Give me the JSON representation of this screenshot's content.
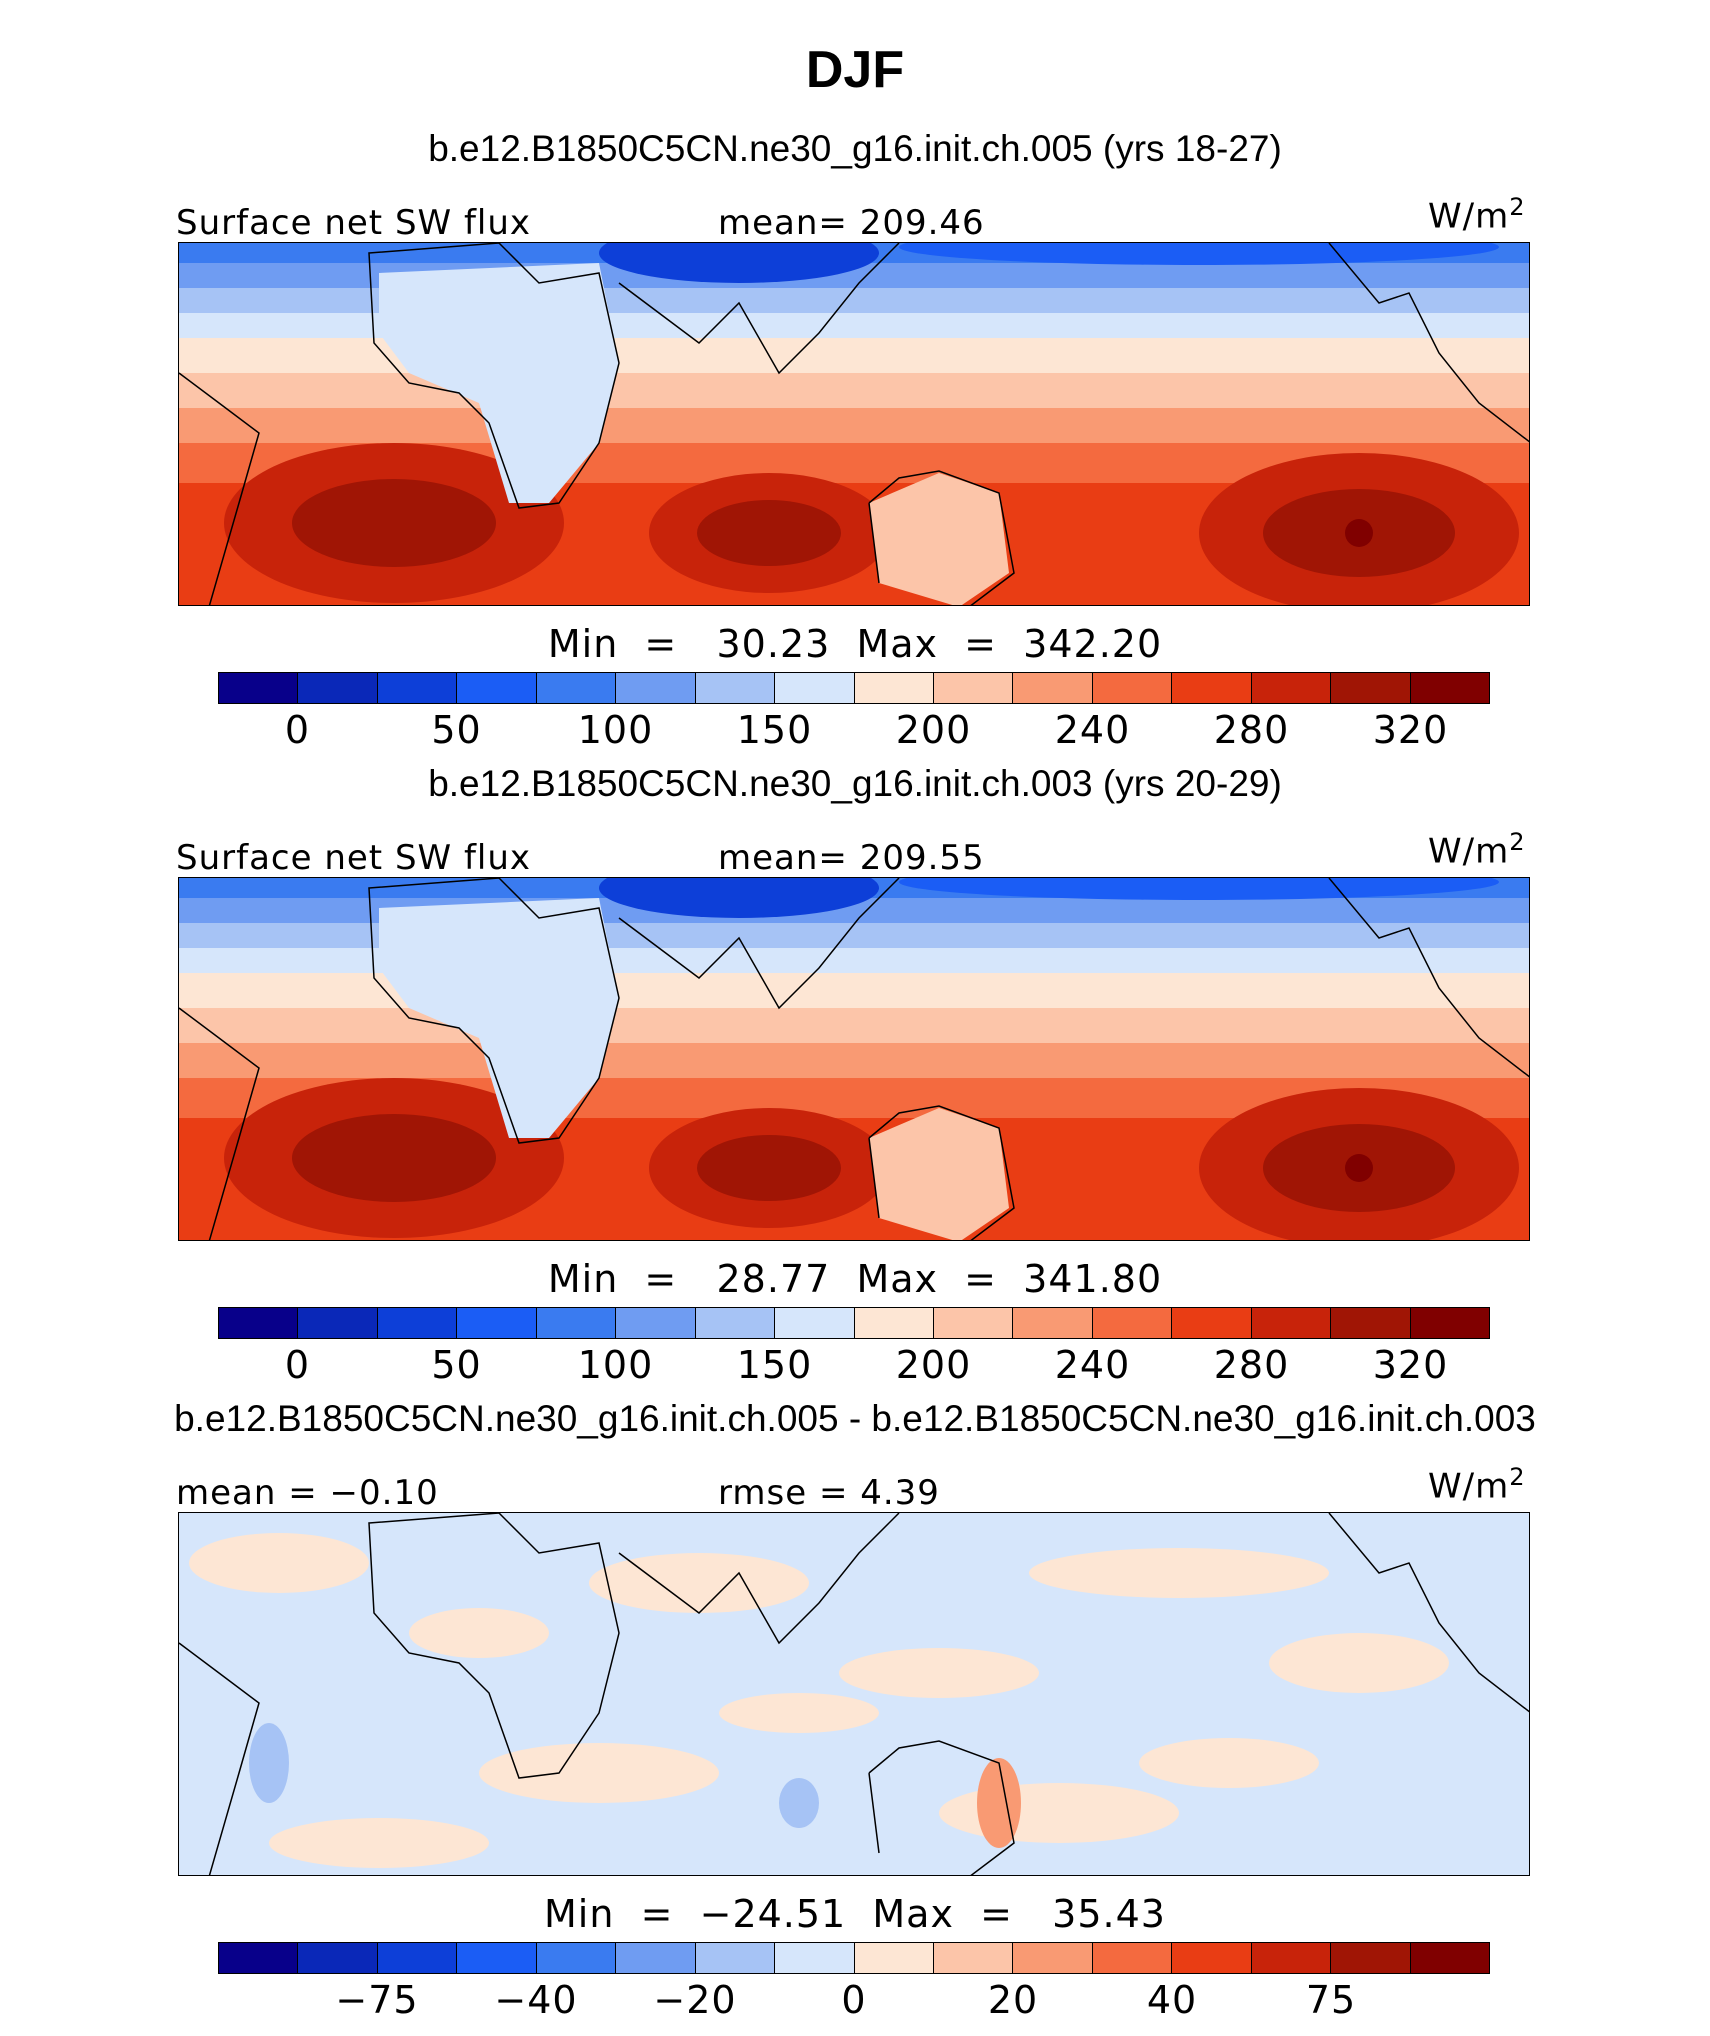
{
  "title": "DJF",
  "palette": {
    "blue_red_14": [
      "#08008a",
      "#0a28b8",
      "#0d3fd8",
      "#1b5df5",
      "#3a7bf0",
      "#6f9cf2",
      "#a6c3f5",
      "#d6e6fb",
      "#fde6d4",
      "#fcc5a9",
      "#f99a73",
      "#f46a3f",
      "#e93d14",
      "#c8230a",
      "#a01505",
      "#800000"
    ]
  },
  "panels": [
    {
      "case_title": "b.e12.B1850C5CN.ne30_g16.init.ch.005 (yrs 18-27)",
      "left_label": "Surface net SW flux",
      "center_label": "mean= 209.46",
      "units": "W/m",
      "units_sup": "2",
      "minmax": "Min  =   30.23  Max  =  342.20",
      "tick_labels": [
        "0",
        "50",
        "100",
        "150",
        "200",
        "240",
        "280",
        "320"
      ]
    },
    {
      "case_title": "b.e12.B1850C5CN.ne30_g16.init.ch.003 (yrs 20-29)",
      "left_label": "Surface net SW flux",
      "center_label": "mean= 209.55",
      "units": "W/m",
      "units_sup": "2",
      "minmax": "Min  =   28.77  Max  =  341.80",
      "tick_labels": [
        "0",
        "50",
        "100",
        "150",
        "200",
        "240",
        "280",
        "320"
      ]
    },
    {
      "case_title": "b.e12.B1850C5CN.ne30_g16.init.ch.005 - b.e12.B1850C5CN.ne30_g16.init.ch.003",
      "left_label": "mean =   −0.10",
      "center_label": "rmse =    4.39",
      "units": "W/m",
      "units_sup": "2",
      "minmax": "Min  =  −24.51  Max  =   35.43",
      "tick_labels": [
        "−75",
        "−40",
        "−20",
        "0",
        "20",
        "40",
        "75"
      ]
    }
  ],
  "chart_data": [
    {
      "type": "heatmap",
      "title": "b.e12.B1850C5CN.ne30_g16.init.ch.005 (yrs 18-27)",
      "variable": "Surface net SW flux",
      "units": "W/m2",
      "season": "DJF",
      "mean": 209.46,
      "min": 30.23,
      "max": 342.2,
      "colorbar_levels": [
        0,
        25,
        50,
        75,
        100,
        125,
        150,
        175,
        200,
        220,
        240,
        260,
        280,
        300,
        320
      ],
      "colorbar_tick_labels": [
        "0",
        "50",
        "100",
        "150",
        "200",
        "240",
        "280",
        "320"
      ]
    },
    {
      "type": "heatmap",
      "title": "b.e12.B1850C5CN.ne30_g16.init.ch.003 (yrs 20-29)",
      "variable": "Surface net SW flux",
      "units": "W/m2",
      "season": "DJF",
      "mean": 209.55,
      "min": 28.77,
      "max": 341.8,
      "colorbar_levels": [
        0,
        25,
        50,
        75,
        100,
        125,
        150,
        175,
        200,
        220,
        240,
        260,
        280,
        300,
        320
      ],
      "colorbar_tick_labels": [
        "0",
        "50",
        "100",
        "150",
        "200",
        "240",
        "280",
        "320"
      ]
    },
    {
      "type": "heatmap",
      "title": "b.e12.B1850C5CN.ne30_g16.init.ch.005 - b.e12.B1850C5CN.ne30_g16.init.ch.003",
      "variable": "Surface net SW flux difference",
      "units": "W/m2",
      "season": "DJF",
      "mean": -0.1,
      "rmse": 4.39,
      "min": -24.51,
      "max": 35.43,
      "colorbar_tick_labels": [
        "−75",
        "−40",
        "−20",
        "0",
        "20",
        "40",
        "75"
      ]
    }
  ]
}
